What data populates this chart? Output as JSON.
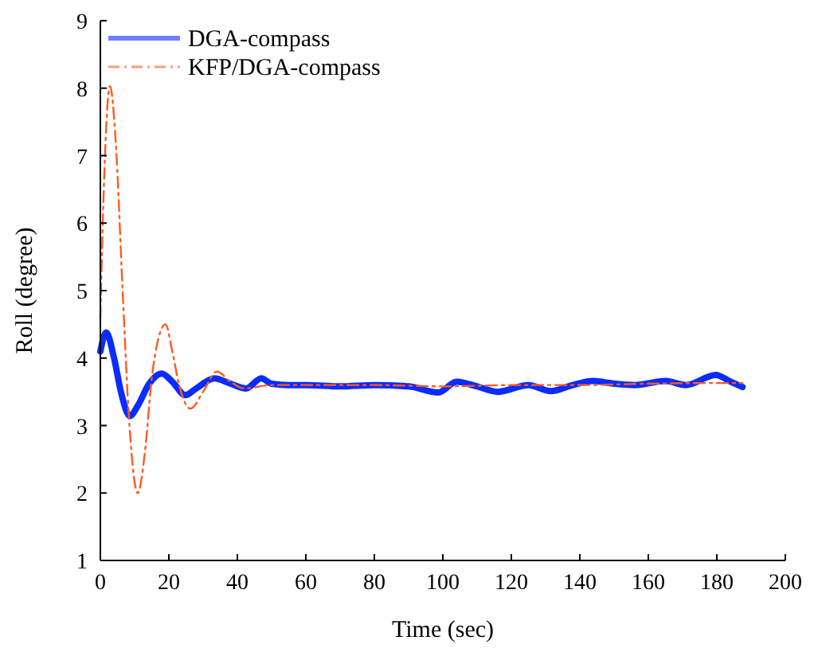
{
  "chart_data": {
    "type": "line",
    "xlabel": "Time (sec)",
    "ylabel": "Roll (degree)",
    "xlim": [
      0,
      200
    ],
    "ylim": [
      1,
      9
    ],
    "xticks": [
      0,
      20,
      40,
      60,
      80,
      100,
      120,
      140,
      160,
      180,
      200
    ],
    "yticks": [
      1,
      2,
      3,
      4,
      5,
      6,
      7,
      8,
      9
    ],
    "grid": false,
    "legend": "top left",
    "series": [
      {
        "name": "DGA-compass",
        "color": "#0a2cff",
        "line_style": "solid",
        "x": [
          0,
          1.7,
          4,
          6,
          8.6,
          11,
          14,
          17.9,
          21,
          24.8,
          28,
          33.3,
          38,
          42.5,
          47,
          50,
          55,
          60,
          70,
          80,
          90,
          98.7,
          104,
          110,
          116,
          125,
          131.5,
          138,
          143.8,
          150,
          156,
          165,
          171,
          179.7,
          184,
          187.5
        ],
        "values": [
          4.1,
          4.38,
          4.0,
          3.5,
          3.14,
          3.3,
          3.6,
          3.77,
          3.65,
          3.45,
          3.55,
          3.7,
          3.62,
          3.55,
          3.7,
          3.62,
          3.6,
          3.6,
          3.58,
          3.6,
          3.58,
          3.49,
          3.65,
          3.58,
          3.5,
          3.6,
          3.51,
          3.6,
          3.66,
          3.62,
          3.6,
          3.66,
          3.6,
          3.75,
          3.65,
          3.57
        ]
      },
      {
        "name": "KFP/DGA-compass",
        "color": "#ff5a1f",
        "line_style": "dashdot",
        "x": [
          0,
          1,
          2.8,
          4.5,
          6.5,
          8.5,
          10.9,
          13,
          15,
          17,
          19,
          21,
          23,
          26.3,
          30,
          34,
          38,
          42,
          50,
          60,
          80,
          100,
          120,
          140,
          160,
          180,
          187.5
        ],
        "values": [
          4.6,
          6.5,
          8.03,
          7.2,
          5.0,
          3.0,
          2.0,
          2.6,
          3.7,
          4.3,
          4.5,
          4.1,
          3.6,
          3.25,
          3.5,
          3.8,
          3.65,
          3.55,
          3.6,
          3.6,
          3.6,
          3.58,
          3.6,
          3.6,
          3.62,
          3.63,
          3.63
        ]
      }
    ]
  }
}
